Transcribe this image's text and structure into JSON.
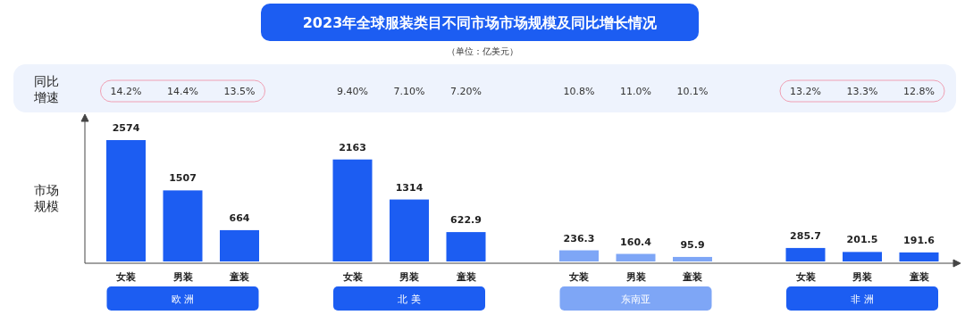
{
  "chart_data": {
    "type": "bar",
    "title": "2023年全球服装类目不同市场市场规模及同比增长情况",
    "subtitle": "（单位：亿美元）",
    "categories": [
      "女装",
      "男装",
      "童装",
      "女装",
      "男装",
      "童装",
      "女装",
      "男装",
      "童装",
      "女装",
      "男装",
      "童装"
    ],
    "values": [
      2574,
      1507,
      664,
      2163,
      1314,
      622.9,
      236.3,
      160.4,
      95.9,
      285.7,
      201.5,
      191.6
    ],
    "colors": [
      "#1c5df2",
      "#1c5df2",
      "#1c5df2",
      "#1c5df2",
      "#1c5df2",
      "#1c5df2",
      "#7ea6f6",
      "#7ea6f6",
      "#7ea6f6",
      "#1c5df2",
      "#1c5df2",
      "#1c5df2"
    ],
    "value_labels": [
      "2574",
      "1507",
      "664",
      "2163",
      "1314",
      "622.9",
      "236.3",
      "160.4",
      "95.9",
      "285.7",
      "201.5",
      "191.6"
    ],
    "relative": false,
    "annotations": [
      "同比",
      "增速",
      "市场",
      "规模",
      "欧 洲",
      "北 美",
      "东南亚",
      "非 洲",
      "14.2%",
      "14.4%",
      "13.5%",
      "9.40%",
      "7.10%",
      "7.20%",
      "10.8%",
      "11.0%",
      "10.1%",
      "13.2%",
      "13.3%",
      "12.8%"
    ]
  }
}
